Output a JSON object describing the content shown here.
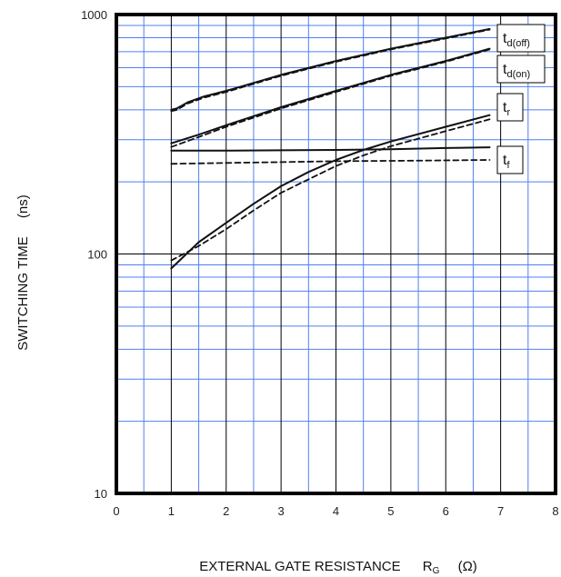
{
  "chart_data": {
    "type": "line",
    "xlabel": "EXTERNAL GATE RESISTANCE",
    "xlabel_symbol": "R",
    "xlabel_subscript": "G",
    "xlabel_unit": "(Ω)",
    "ylabel": "SWITCHING TIME",
    "ylabel_unit": "(ns)",
    "xlim": [
      0,
      8
    ],
    "ylim": [
      10,
      1000
    ],
    "yscale": "log",
    "grid": true,
    "x_ticks": [
      "0",
      "1",
      "2",
      "3",
      "4",
      "5",
      "6",
      "7",
      "8"
    ],
    "y_ticks": [
      "10",
      "100",
      "1000"
    ],
    "series": [
      {
        "name": "td(off)",
        "label_main": "t",
        "label_sub": "d(off)",
        "style": "solid",
        "x": [
          1.0,
          1.1,
          1.3,
          1.6,
          2,
          3,
          4,
          5,
          6,
          6.8
        ],
        "y": [
          400,
          405,
          430,
          455,
          480,
          560,
          640,
          720,
          800,
          870
        ]
      },
      {
        "name": "td(off)",
        "label_main": "",
        "label_sub": "",
        "style": "dashed",
        "x": [
          1.0,
          1.1,
          1.3,
          1.6,
          2,
          3,
          4,
          5,
          6,
          6.8
        ],
        "y": [
          395,
          400,
          425,
          450,
          475,
          555,
          635,
          715,
          795,
          865
        ]
      },
      {
        "name": "td(on)",
        "label_main": "t",
        "label_sub": "d(on)",
        "style": "solid",
        "x": [
          1,
          1.5,
          2,
          3,
          4,
          5,
          6,
          6.8
        ],
        "y": [
          290,
          315,
          345,
          410,
          480,
          560,
          640,
          720
        ]
      },
      {
        "name": "td(on)",
        "label_main": "",
        "label_sub": "",
        "style": "dashed",
        "x": [
          1,
          1.5,
          2,
          3,
          4,
          5,
          6,
          6.8
        ],
        "y": [
          280,
          308,
          340,
          405,
          475,
          555,
          635,
          715
        ]
      },
      {
        "name": "tr",
        "label_main": "t",
        "label_sub": "r",
        "style": "solid",
        "x": [
          1,
          1.5,
          2,
          2.5,
          3,
          3.5,
          4,
          4.5,
          5,
          6,
          6.8
        ],
        "y": [
          87,
          112,
          135,
          162,
          192,
          220,
          247,
          272,
          295,
          340,
          380
        ]
      },
      {
        "name": "tr",
        "label_main": "",
        "label_sub": "",
        "style": "dashed",
        "x": [
          1,
          1.5,
          2,
          2.5,
          3,
          3.5,
          4,
          4.5,
          5,
          6,
          6.8
        ],
        "y": [
          94,
          108,
          127,
          152,
          180,
          205,
          233,
          258,
          282,
          326,
          365
        ]
      },
      {
        "name": "tf",
        "label_main": "t",
        "label_sub": "f",
        "style": "solid",
        "x": [
          1,
          2,
          3,
          4,
          5,
          6,
          6.8
        ],
        "y": [
          270,
          270,
          271,
          272,
          274,
          277,
          279
        ]
      },
      {
        "name": "tf",
        "label_main": "",
        "label_sub": "",
        "style": "dashed",
        "x": [
          1,
          2,
          3,
          4,
          5,
          6,
          6.8
        ],
        "y": [
          238,
          240,
          242,
          244,
          245,
          246,
          247
        ]
      }
    ],
    "colors": {
      "grid_major": "#000000",
      "grid_minor": "#4f7ff0",
      "curve": "#111111",
      "frame": "#000000"
    }
  }
}
